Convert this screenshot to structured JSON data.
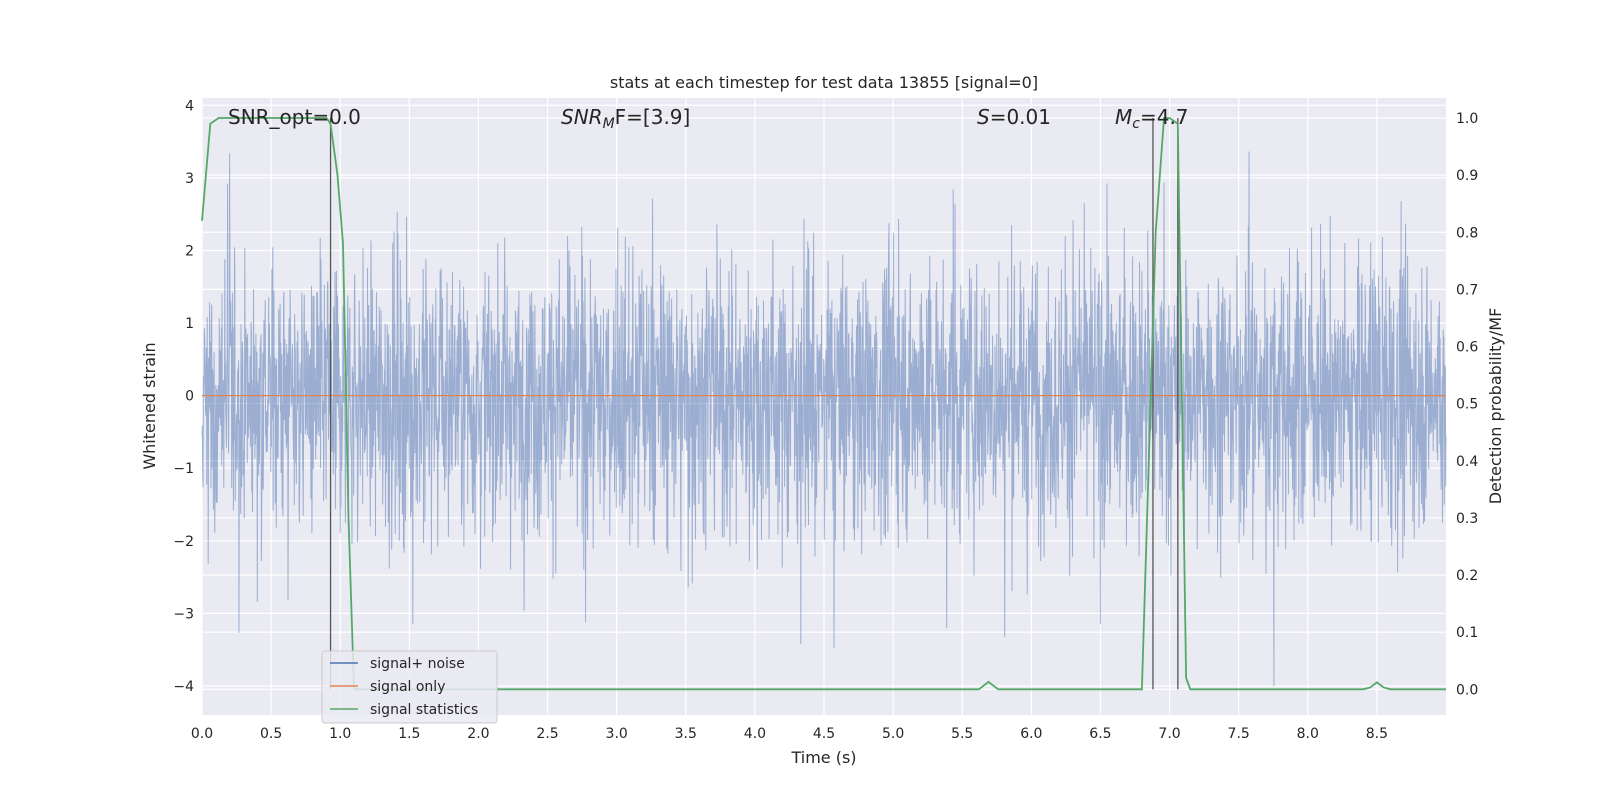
{
  "chart_data": {
    "type": "line",
    "title": "stats at each timestep for test data 13855 [signal=0]",
    "xlabel": "Time (s)",
    "ylabel": "Whitened strain",
    "y2label": "Detection probability/MF",
    "xlim": [
      0.0,
      9.0
    ],
    "ylim": [
      -4.4,
      4.1
    ],
    "y2lim": [
      -0.045,
      1.035
    ],
    "xticks": [
      0.0,
      0.5,
      1.0,
      1.5,
      2.0,
      2.5,
      3.0,
      3.5,
      4.0,
      4.5,
      5.0,
      5.5,
      6.0,
      6.5,
      7.0,
      7.5,
      8.0,
      8.5
    ],
    "xtick_labels": [
      "0.0",
      "0.5",
      "1.0",
      "1.5",
      "2.0",
      "2.5",
      "3.0",
      "3.5",
      "4.0",
      "4.5",
      "5.0",
      "5.5",
      "6.0",
      "6.5",
      "7.0",
      "7.5",
      "8.0",
      "8.5"
    ],
    "yticks": [
      -4,
      -3,
      -2,
      -1,
      0,
      1,
      2,
      3,
      4
    ],
    "ytick_labels": [
      "−4",
      "−3",
      "−2",
      "−1",
      "0",
      "1",
      "2",
      "3",
      "4"
    ],
    "y2ticks": [
      0.0,
      0.1,
      0.2,
      0.3,
      0.4,
      0.5,
      0.6,
      0.7,
      0.8,
      0.9,
      1.0
    ],
    "y2tick_labels": [
      "0.0",
      "0.1",
      "0.2",
      "0.3",
      "0.4",
      "0.5",
      "0.6",
      "0.7",
      "0.8",
      "0.9",
      "1.0"
    ],
    "grid": true,
    "legend_position": "lower-left",
    "annotations": {
      "snr_opt": "SNR_opt=0.0",
      "snr_mf_sym": "SNR",
      "snr_mf_sub": "M",
      "snr_mf_rest": "F=[3.9]",
      "s_sym": "S",
      "s_rest": "=0.01",
      "mc_sym": "M",
      "mc_sub": "c",
      "mc_rest": "=4.7"
    },
    "vertical_lines_x": [
      0.93,
      6.88,
      7.06
    ],
    "series": [
      {
        "name": "signal+ noise",
        "color": "#4c72b0",
        "axis": "left",
        "envelope": {
          "x_range": [
            0.0,
            9.0
          ],
          "typical_abs": 1.5,
          "peak_max": 3.7,
          "peak_min": -4.0
        }
      },
      {
        "name": "signal only",
        "color": "#dd8452",
        "axis": "left",
        "x": [
          0.0,
          9.0
        ],
        "y": [
          0.0,
          0.0
        ]
      },
      {
        "name": "signal statistics",
        "color": "#55a868",
        "axis": "right",
        "x": [
          0.0,
          0.06,
          0.12,
          0.3,
          0.5,
          0.7,
          0.9,
          0.93,
          0.98,
          1.02,
          1.06,
          1.1,
          1.2,
          1.5,
          2.0,
          3.0,
          4.0,
          5.0,
          5.5,
          5.62,
          5.69,
          5.76,
          6.0,
          6.5,
          6.8,
          6.85,
          6.9,
          6.96,
          7.0,
          7.06,
          7.09,
          7.12,
          7.15,
          7.2,
          7.5,
          8.0,
          8.4,
          8.45,
          8.5,
          8.55,
          8.6,
          9.0
        ],
        "y": [
          0.82,
          0.99,
          1.0,
          1.0,
          1.0,
          1.0,
          1.0,
          0.99,
          0.9,
          0.78,
          0.3,
          0.0,
          0.0,
          0.0,
          0.0,
          0.0,
          0.0,
          0.0,
          0.0,
          0.0,
          0.013,
          0.0,
          0.0,
          0.0,
          0.0,
          0.4,
          0.8,
          1.0,
          1.0,
          0.99,
          0.5,
          0.02,
          0.0,
          0.0,
          0.0,
          0.0,
          0.0,
          0.003,
          0.012,
          0.003,
          0.0,
          0.0
        ]
      }
    ]
  }
}
